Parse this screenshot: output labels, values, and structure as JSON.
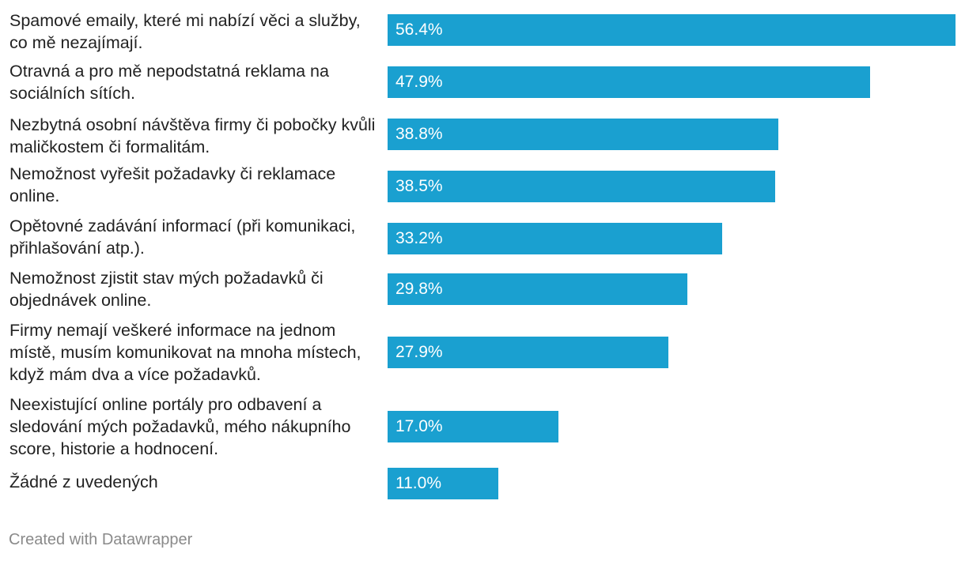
{
  "chart_data": {
    "type": "bar",
    "orientation": "horizontal",
    "color": "#1aa0d0",
    "xlim": [
      0,
      56.4
    ],
    "categories": [
      "Spamové emaily, které mi nabízí věci a služby, co mě nezajímají.",
      "Otravná a pro mě nepodstatná reklama na sociálních sítích.",
      "Nezbytná osobní návštěva firmy či pobočky kvůli maličkostem či formalitám.",
      "Nemožnost vyřešit požadavky či reklamace online.",
      "Opětovné zadávání informací (při komunikaci, přihlašování atp.).",
      "Nemožnost zjistit stav mých požadavků či objednávek online.",
      "Firmy nemají veškeré informace na jednom místě, musím komunikovat na mnoha místech, když mám dva a více požadavků.",
      "Neexistující online portály pro odbavení a sledování mých požadavků, mého nákupního score, historie a hodnocení.",
      "Žádné z uvedených"
    ],
    "values": [
      56.4,
      47.9,
      38.8,
      38.5,
      33.2,
      29.8,
      27.9,
      17.0,
      11.0
    ],
    "value_labels": [
      "56.4%",
      "47.9%",
      "38.8%",
      "38.5%",
      "33.2%",
      "29.8%",
      "27.9%",
      "17.0%",
      "11.0%"
    ]
  },
  "footer": {
    "credit": "Created with Datawrapper"
  }
}
